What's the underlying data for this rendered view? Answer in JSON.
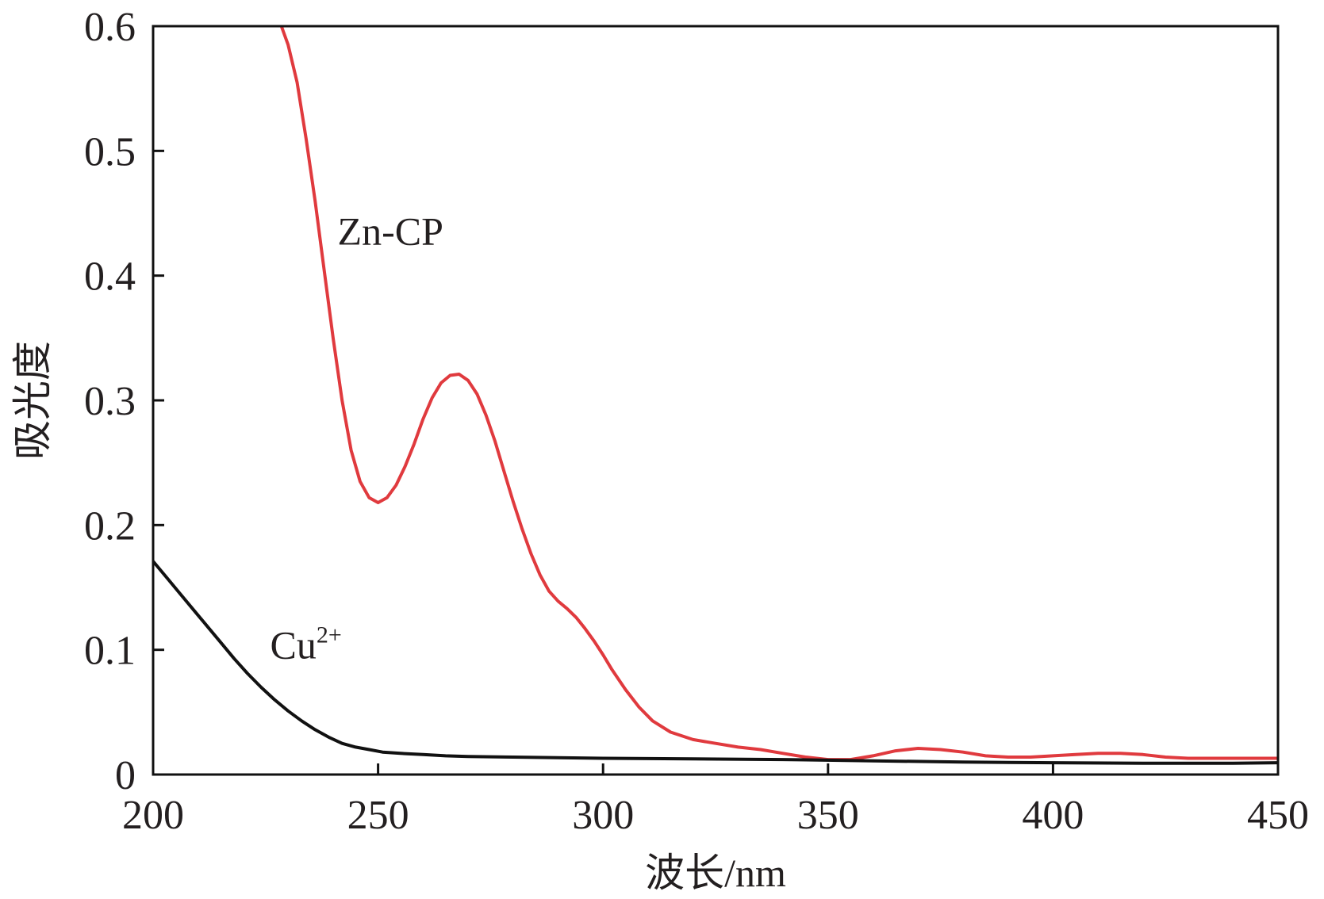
{
  "chart_data": {
    "type": "line",
    "title": "",
    "xlabel": "波长/nm",
    "ylabel": "吸光度",
    "xlim": [
      200,
      450
    ],
    "ylim": [
      0,
      0.6
    ],
    "grid": false,
    "x_ticks": [
      200,
      250,
      300,
      350,
      400,
      450
    ],
    "x_tick_labels": [
      "200",
      "250",
      "300",
      "350",
      "400",
      "450"
    ],
    "y_ticks": [
      0,
      0.1,
      0.2,
      0.3,
      0.4,
      0.5,
      0.6
    ],
    "y_tick_labels": [
      "0",
      "0.1",
      "0.2",
      "0.3",
      "0.4",
      "0.5",
      "0.6"
    ],
    "series": [
      {
        "name": "Zn-CP",
        "label": "Zn-CP",
        "color": "#e03a3e",
        "label_at": [
          241,
          0.425
        ],
        "points": [
          [
            228.5,
            0.6
          ],
          [
            230,
            0.585
          ],
          [
            232,
            0.555
          ],
          [
            234,
            0.51
          ],
          [
            236,
            0.46
          ],
          [
            238,
            0.405
          ],
          [
            240,
            0.35
          ],
          [
            242,
            0.3
          ],
          [
            244,
            0.26
          ],
          [
            246,
            0.235
          ],
          [
            248,
            0.222
          ],
          [
            250,
            0.218
          ],
          [
            252,
            0.222
          ],
          [
            254,
            0.232
          ],
          [
            256,
            0.247
          ],
          [
            258,
            0.265
          ],
          [
            260,
            0.285
          ],
          [
            262,
            0.302
          ],
          [
            264,
            0.314
          ],
          [
            266,
            0.32
          ],
          [
            268,
            0.321
          ],
          [
            270,
            0.316
          ],
          [
            272,
            0.305
          ],
          [
            274,
            0.288
          ],
          [
            276,
            0.267
          ],
          [
            278,
            0.243
          ],
          [
            280,
            0.219
          ],
          [
            282,
            0.197
          ],
          [
            284,
            0.177
          ],
          [
            286,
            0.16
          ],
          [
            288,
            0.147
          ],
          [
            290,
            0.139
          ],
          [
            292,
            0.133
          ],
          [
            294,
            0.126
          ],
          [
            296,
            0.117
          ],
          [
            298,
            0.107
          ],
          [
            300,
            0.096
          ],
          [
            302,
            0.084
          ],
          [
            305,
            0.068
          ],
          [
            308,
            0.054
          ],
          [
            311,
            0.043
          ],
          [
            315,
            0.034
          ],
          [
            320,
            0.028
          ],
          [
            325,
            0.025
          ],
          [
            330,
            0.022
          ],
          [
            335,
            0.02
          ],
          [
            340,
            0.017
          ],
          [
            345,
            0.014
          ],
          [
            350,
            0.012
          ],
          [
            355,
            0.012
          ],
          [
            360,
            0.015
          ],
          [
            365,
            0.019
          ],
          [
            370,
            0.021
          ],
          [
            375,
            0.02
          ],
          [
            380,
            0.018
          ],
          [
            385,
            0.015
          ],
          [
            390,
            0.014
          ],
          [
            395,
            0.014
          ],
          [
            400,
            0.015
          ],
          [
            405,
            0.016
          ],
          [
            410,
            0.017
          ],
          [
            415,
            0.017
          ],
          [
            420,
            0.016
          ],
          [
            425,
            0.014
          ],
          [
            430,
            0.013
          ],
          [
            435,
            0.013
          ],
          [
            440,
            0.013
          ],
          [
            445,
            0.013
          ],
          [
            450,
            0.013
          ]
        ]
      },
      {
        "name": "Cu2+",
        "label": "Cu",
        "label_sup": "2+",
        "color": "#111111",
        "label_at": [
          226,
          0.093
        ],
        "points": [
          [
            200,
            0.171
          ],
          [
            203,
            0.158
          ],
          [
            206,
            0.145
          ],
          [
            209,
            0.132
          ],
          [
            212,
            0.119
          ],
          [
            215,
            0.106
          ],
          [
            218,
            0.093
          ],
          [
            221,
            0.081
          ],
          [
            224,
            0.07
          ],
          [
            227,
            0.06
          ],
          [
            230,
            0.051
          ],
          [
            233,
            0.043
          ],
          [
            236,
            0.036
          ],
          [
            239,
            0.03
          ],
          [
            242,
            0.025
          ],
          [
            245,
            0.022
          ],
          [
            248,
            0.02
          ],
          [
            251,
            0.018
          ],
          [
            255,
            0.017
          ],
          [
            260,
            0.016
          ],
          [
            265,
            0.015
          ],
          [
            270,
            0.0145
          ],
          [
            280,
            0.014
          ],
          [
            290,
            0.0135
          ],
          [
            300,
            0.013
          ],
          [
            320,
            0.0125
          ],
          [
            340,
            0.012
          ],
          [
            360,
            0.011
          ],
          [
            380,
            0.01
          ],
          [
            400,
            0.0095
          ],
          [
            420,
            0.009
          ],
          [
            440,
            0.009
          ],
          [
            450,
            0.0095
          ]
        ]
      }
    ]
  }
}
